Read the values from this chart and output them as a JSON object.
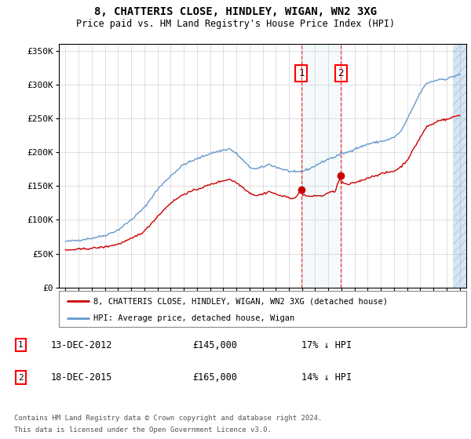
{
  "title": "8, CHATTERIS CLOSE, HINDLEY, WIGAN, WN2 3XG",
  "subtitle": "Price paid vs. HM Land Registry's House Price Index (HPI)",
  "ylabel_ticks": [
    "£0",
    "£50K",
    "£100K",
    "£150K",
    "£200K",
    "£250K",
    "£300K",
    "£350K"
  ],
  "ytick_values": [
    0,
    50000,
    100000,
    150000,
    200000,
    250000,
    300000,
    350000
  ],
  "ylim": [
    0,
    360000
  ],
  "transaction1": {
    "price": 145000,
    "x": 2012.95
  },
  "transaction2": {
    "price": 165000,
    "x": 2015.96
  },
  "legend_line1": "8, CHATTERIS CLOSE, HINDLEY, WIGAN, WN2 3XG (detached house)",
  "legend_line2": "HPI: Average price, detached house, Wigan",
  "footer1": "Contains HM Land Registry data © Crown copyright and database right 2024.",
  "footer2": "This data is licensed under the Open Government Licence v3.0.",
  "table": [
    {
      "num": "1",
      "date": "13-DEC-2012",
      "price": "£145,000",
      "hpi": "17% ↓ HPI"
    },
    {
      "num": "2",
      "date": "18-DEC-2015",
      "price": "£165,000",
      "hpi": "14% ↓ HPI"
    }
  ],
  "red_color": "#cc0000",
  "blue_color": "#6699cc",
  "xlim_left": 1994.5,
  "xlim_right": 2025.5,
  "hatch_start": 2024.5,
  "hatch_end": 2025.5,
  "shade_alpha": 0.13,
  "hatch_alpha": 0.25
}
